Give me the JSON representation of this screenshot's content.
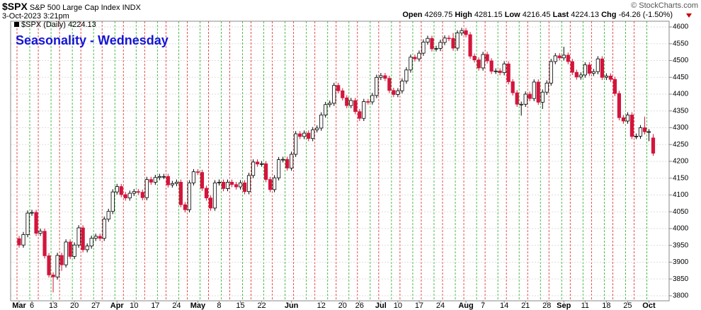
{
  "header": {
    "symbol": "$SPX",
    "name": "S&P 500 Large Cap Index",
    "exchange": "INDX",
    "timestamp": "3-Oct-2023 3:21pm",
    "open_label": "Open",
    "high_label": "High",
    "low_label": "Low",
    "last_label": "Last",
    "chg_label": "Chg",
    "change": "-64.26 (-1.50%)",
    "credit": "© StockCharts.com"
  },
  "chart_data": {
    "type": "candlestick",
    "title": "Seasonality - Wednesday",
    "legend": "$SPX (Daily)",
    "categories": [
      "Mar",
      null,
      null,
      "6",
      null,
      null,
      null,
      null,
      "13",
      null,
      null,
      null,
      null,
      "20",
      null,
      null,
      null,
      null,
      "27",
      null,
      null,
      null,
      null,
      "Apr",
      null,
      null,
      null,
      "10",
      null,
      null,
      null,
      null,
      "17",
      null,
      null,
      null,
      null,
      "24",
      null,
      null,
      null,
      null,
      "May",
      null,
      null,
      null,
      null,
      "8",
      null,
      null,
      null,
      null,
      "15",
      null,
      null,
      null,
      null,
      "22",
      null,
      null,
      null,
      null,
      null,
      null,
      "Jun",
      null,
      null,
      null,
      null,
      null,
      null,
      "12",
      null,
      null,
      null,
      null,
      "20",
      null,
      null,
      null,
      "26",
      null,
      null,
      null,
      null,
      "Jul",
      null,
      null,
      null,
      "10",
      null,
      null,
      null,
      null,
      "17",
      null,
      null,
      null,
      null,
      "24",
      null,
      null,
      null,
      null,
      null,
      "Aug",
      null,
      null,
      null,
      "7",
      null,
      null,
      null,
      null,
      "14",
      null,
      null,
      null,
      null,
      "21",
      null,
      null,
      null,
      null,
      "28",
      null,
      null,
      null,
      "Sep",
      null,
      null,
      null,
      null,
      "11",
      null,
      null,
      null,
      null,
      "18",
      null,
      null,
      null,
      null,
      "25",
      null,
      null,
      null,
      null,
      "Oct",
      null
    ],
    "open": [
      3970,
      3951,
      3982,
      4046,
      4048,
      3986,
      3992,
      3919,
      3862,
      3856,
      3920,
      3892,
      3960,
      3917,
      3951,
      4002,
      3937,
      3948,
      3971,
      3977,
      3971,
      4028,
      4051,
      4109,
      4125,
      4101,
      4091,
      4105,
      4110,
      4108,
      4092,
      4146,
      4138,
      4152,
      4155,
      4155,
      4130,
      4134,
      4138,
      4071,
      4056,
      4136,
      4169,
      4167,
      4120,
      4091,
      4061,
      4136,
      4138,
      4119,
      4138,
      4131,
      4124,
      4136,
      4110,
      4158,
      4198,
      4192,
      4193,
      4146,
      4116,
      4151,
      4205,
      4206,
      4180,
      4221,
      4282,
      4274,
      4284,
      4268,
      4294,
      4299,
      4338,
      4369,
      4373,
      4426,
      4410,
      4389,
      4366,
      4381,
      4348,
      4328,
      4378,
      4377,
      4396,
      4450,
      4455,
      4447,
      4411,
      4399,
      4410,
      4439,
      4472,
      4510,
      4505,
      4522,
      4555,
      4566,
      4535,
      4536,
      4554,
      4567,
      4566,
      4537,
      4582,
      4589,
      4577,
      4513,
      4502,
      4478,
      4518,
      4499,
      4468,
      4469,
      4464,
      4490,
      4437,
      4404,
      4370,
      4370,
      4400,
      4387,
      4436,
      4376,
      4406,
      4433,
      4497,
      4514,
      4508,
      4516,
      4497,
      4465,
      4451,
      4457,
      4487,
      4462,
      4467,
      4505,
      4450,
      4454,
      4444,
      4402,
      4330,
      4320,
      4338,
      4274,
      4275,
      4300,
      4288,
      4269.75
    ],
    "high": [
      3978,
      3990,
      4054,
      4056,
      4056,
      4000,
      4000,
      3927,
      3870,
      3928,
      3928,
      3968,
      3968,
      3959,
      4010,
      4010,
      3956,
      3979,
      3985,
      3985,
      4036,
      4059,
      4117,
      4133,
      4133,
      4109,
      4113,
      4118,
      4118,
      4116,
      4154,
      4154,
      4160,
      4163,
      4163,
      4163,
      4142,
      4146,
      4146,
      4079,
      4144,
      4177,
      4177,
      4175,
      4128,
      4099,
      4144,
      4146,
      4146,
      4146,
      4146,
      4139,
      4144,
      4144,
      4166,
      4206,
      4206,
      4201,
      4201,
      4154,
      4159,
      4213,
      4214,
      4214,
      4229,
      4290,
      4290,
      4292,
      4292,
      4302,
      4307,
      4346,
      4377,
      4381,
      4434,
      4434,
      4418,
      4397,
      4389,
      4389,
      4356,
      4386,
      4386,
      4404,
      4458,
      4463,
      4463,
      4455,
      4419,
      4418,
      4447,
      4480,
      4518,
      4518,
      4530,
      4563,
      4574,
      4574,
      4544,
      4562,
      4575,
      4575,
      4582,
      4590,
      4597,
      4597,
      4585,
      4521,
      4510,
      4526,
      4526,
      4507,
      4477,
      4477,
      4498,
      4498,
      4445,
      4412,
      4378,
      4408,
      4408,
      4444,
      4444,
      4414,
      4441,
      4505,
      4522,
      4522,
      4541,
      4524,
      4505,
      4473,
      4465,
      4495,
      4495,
      4475,
      4513,
      4513,
      4462,
      4462,
      4452,
      4410,
      4338,
      4346,
      4346,
      4283,
      4308,
      4333,
      4296,
      4281.15
    ],
    "low": [
      3943,
      3943,
      3974,
      4038,
      3978,
      3978,
      3911,
      3854,
      3810,
      3848,
      3874,
      3884,
      3909,
      3909,
      3943,
      3929,
      3929,
      3940,
      3963,
      3963,
      3963,
      4020,
      4043,
      4101,
      4093,
      4083,
      4083,
      4097,
      4100,
      4084,
      4084,
      4130,
      4130,
      4144,
      4147,
      4122,
      4122,
      4126,
      4063,
      4048,
      4048,
      4128,
      4159,
      4112,
      4083,
      4053,
      4053,
      4128,
      4111,
      4111,
      4123,
      4116,
      4116,
      4102,
      4102,
      4150,
      4184,
      4184,
      4138,
      4108,
      4108,
      4143,
      4197,
      4172,
      4172,
      4213,
      4266,
      4266,
      4260,
      4260,
      4286,
      4291,
      4330,
      4361,
      4365,
      4402,
      4381,
      4358,
      4358,
      4340,
      4320,
      4320,
      4369,
      4369,
      4388,
      4442,
      4439,
      4403,
      4391,
      4391,
      4402,
      4431,
      4464,
      4497,
      4497,
      4514,
      4547,
      4527,
      4527,
      4528,
      4546,
      4558,
      4529,
      4529,
      4574,
      4569,
      4505,
      4494,
      4470,
      4470,
      4491,
      4460,
      4460,
      4456,
      4456,
      4429,
      4396,
      4362,
      4336,
      4362,
      4379,
      4379,
      4368,
      4356,
      4398,
      4425,
      4489,
      4500,
      4500,
      4489,
      4457,
      4443,
      4443,
      4449,
      4454,
      4454,
      4459,
      4442,
      4442,
      4436,
      4394,
      4322,
      4312,
      4312,
      4266,
      4266,
      4267,
      4280,
      4260,
      4216.45
    ],
    "close": [
      3951,
      3982,
      4046,
      4048,
      3986,
      3992,
      3919,
      3862,
      3856,
      3920,
      3892,
      3960,
      3917,
      3951,
      4002,
      3937,
      3948,
      3971,
      3977,
      3971,
      4028,
      4051,
      4109,
      4125,
      4101,
      4091,
      4105,
      4110,
      4108,
      4092,
      4146,
      4138,
      4152,
      4155,
      4155,
      4130,
      4134,
      4138,
      4071,
      4056,
      4136,
      4169,
      4167,
      4120,
      4091,
      4061,
      4136,
      4138,
      4119,
      4138,
      4131,
      4124,
      4136,
      4110,
      4158,
      4198,
      4192,
      4193,
      4146,
      4116,
      4151,
      4205,
      4206,
      4180,
      4221,
      4282,
      4274,
      4284,
      4268,
      4294,
      4299,
      4338,
      4369,
      4373,
      4426,
      4410,
      4389,
      4366,
      4381,
      4348,
      4328,
      4378,
      4377,
      4396,
      4450,
      4455,
      4447,
      4411,
      4399,
      4410,
      4439,
      4472,
      4510,
      4505,
      4522,
      4555,
      4566,
      4535,
      4536,
      4554,
      4567,
      4566,
      4537,
      4582,
      4589,
      4577,
      4513,
      4502,
      4478,
      4518,
      4499,
      4468,
      4469,
      4464,
      4490,
      4437,
      4404,
      4370,
      4370,
      4400,
      4387,
      4436,
      4376,
      4406,
      4433,
      4497,
      4514,
      4508,
      4516,
      4497,
      4465,
      4451,
      4457,
      4487,
      4462,
      4467,
      4505,
      4450,
      4454,
      4444,
      4402,
      4330,
      4320,
      4338,
      4274,
      4275,
      4300,
      4288,
      4288.39,
      4224.13
    ],
    "up_color": "#ffffff",
    "down_color": "#d4143c",
    "ylim": [
      3785,
      4617
    ],
    "yticks": [
      3800,
      3850,
      3900,
      3950,
      4000,
      4050,
      4100,
      4150,
      4200,
      4250,
      4300,
      4350,
      4400,
      4450,
      4500,
      4550,
      4600
    ],
    "grid": true
  }
}
